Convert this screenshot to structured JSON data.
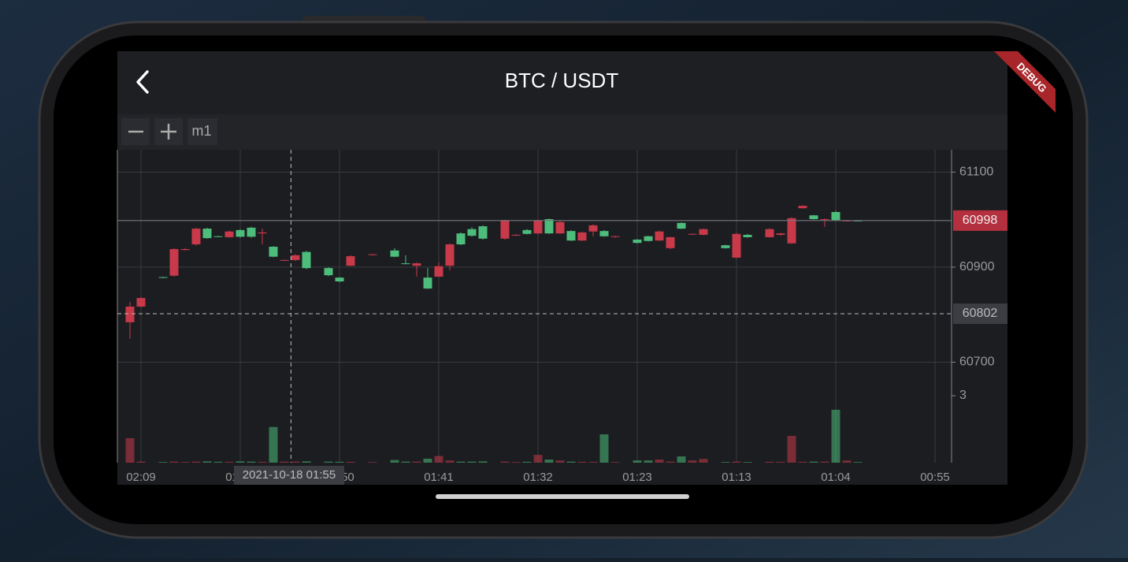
{
  "header": {
    "title": "BTC / USDT",
    "debug_banner": "DEBUG"
  },
  "toolbar": {
    "interval": "m1"
  },
  "chart_data": {
    "type": "candlestick",
    "categories": [
      null,
      "02:09",
      null,
      null,
      null,
      null,
      null,
      null,
      null,
      null,
      "01:59",
      null,
      null,
      null,
      null,
      null,
      null,
      null,
      null,
      "01:50",
      null,
      null,
      null,
      null,
      null,
      null,
      null,
      null,
      "01:41",
      null,
      null,
      null,
      null,
      null,
      null,
      null,
      null,
      "01:32",
      null,
      null,
      null,
      null,
      null,
      null,
      null,
      null,
      "01:23",
      null,
      null,
      null,
      null,
      null,
      null,
      null,
      null,
      "01:13",
      null,
      null,
      null,
      null,
      null,
      null,
      null,
      null,
      "01:04",
      null,
      null,
      null,
      null,
      null,
      null,
      null,
      null,
      "00:55"
    ],
    "open": [
      60817,
      60835,
      null,
      60878,
      60938,
      60938,
      60981,
      60961,
      60964,
      60975,
      60964,
      60964,
      60973,
      60922,
      60915,
      60925,
      60898,
      null,
      60883,
      60870,
      60923,
      null,
      60927,
      null,
      60922,
      60907,
      60908,
      60855,
      60902,
      60948,
      60948,
      60966,
      60960,
      null,
      60999,
      60968,
      60970,
      60998,
      60971,
      60995,
      60956,
      60973,
      60988,
      60965,
      60965,
      null,
      60951,
      60955,
      60975,
      60963,
      60981,
      60970,
      60980,
      null,
      60940,
      60970,
      60963,
      null,
      60980,
      60971,
      61003,
      61029,
      61001,
      61001,
      60999,
      60998,
      60998,
      null,
      null,
      null,
      null,
      null,
      null,
      null
    ],
    "high": [
      60827,
      60837,
      null,
      60880,
      60940,
      60940,
      60983,
      60983,
      60966,
      60977,
      60980,
      60985,
      60981,
      60944,
      60916,
      60927,
      60934,
      null,
      60900,
      60879,
      60925,
      null,
      60928,
      null,
      60940,
      60925,
      60910,
      60898,
      60910,
      60950,
      60973,
      60984,
      60988,
      null,
      61000,
      60970,
      60980,
      61000,
      61002,
      60997,
      60978,
      60975,
      60990,
      60978,
      60966,
      null,
      60959,
      60966,
      60977,
      60964,
      60994,
      60971,
      60981,
      null,
      60947,
      60972,
      60970,
      null,
      60982,
      60972,
      61005,
      61030,
      61010,
      61002,
      61018,
      60999,
      60999,
      null,
      null,
      null,
      null,
      null,
      null,
      null
    ],
    "low": [
      60749,
      60815,
      null,
      60877,
      60880,
      60935,
      60945,
      60960,
      60963,
      60962,
      60962,
      60962,
      60948,
      60921,
      60913,
      60913,
      60896,
      null,
      60881,
      60868,
      60902,
      null,
      60925,
      null,
      60921,
      60906,
      60880,
      60854,
      60879,
      60893,
      60946,
      60964,
      60958,
      null,
      60958,
      60966,
      60969,
      60969,
      60970,
      60970,
      60955,
      60955,
      60965,
      60964,
      60962,
      null,
      60950,
      60954,
      60955,
      60938,
      60980,
      60968,
      60967,
      null,
      60939,
      60919,
      60962,
      null,
      60962,
      60966,
      60949,
      61023,
      61000,
      60985,
      60998,
      60996,
      60997,
      null,
      null,
      null,
      null,
      null,
      null,
      null
    ],
    "close": [
      60784,
      60817,
      null,
      60879,
      60882,
      60936,
      60948,
      60981,
      60965,
      60963,
      60978,
      60983,
      60971,
      60943,
      60914,
      60915,
      60932,
      null,
      60898,
      60878,
      60903,
      null,
      60926,
      null,
      60935,
      60908,
      60903,
      60878,
      60880,
      60903,
      60971,
      60980,
      60986,
      null,
      60960,
      60967,
      60978,
      60971,
      61001,
      60971,
      60976,
      60956,
      60975,
      60976,
      60964,
      null,
      60958,
      60965,
      60956,
      60940,
      60993,
      60969,
      60968,
      null,
      60946,
      60920,
      60968,
      null,
      60963,
      60968,
      60950,
      61024,
      61009,
      61000,
      61016,
      60997,
      60998,
      null,
      null,
      null,
      null,
      null,
      null,
      null
    ],
    "volume": [
      1.1,
      0.05,
      null,
      0.03,
      0.05,
      0.03,
      0.05,
      0.06,
      0.04,
      0.04,
      0.06,
      0.05,
      0.04,
      1.6,
      0.05,
      0.05,
      0.06,
      null,
      0.05,
      0.04,
      0.04,
      null,
      0.03,
      null,
      0.12,
      0.05,
      0.05,
      0.18,
      0.3,
      0.1,
      0.05,
      0.05,
      0.06,
      null,
      0.05,
      0.03,
      0.04,
      0.35,
      0.14,
      0.1,
      0.05,
      0.04,
      0.04,
      1.27,
      0.03,
      null,
      0.1,
      0.1,
      0.14,
      0.05,
      0.28,
      0.1,
      0.17,
      null,
      0.03,
      0.05,
      0.03,
      null,
      0.04,
      0.04,
      1.2,
      0.04,
      0.05,
      0.05,
      2.37,
      0.1,
      0.03,
      null,
      null,
      null,
      null,
      null,
      null,
      null
    ],
    "ylim": [
      60666,
      61147
    ],
    "yticks": [
      61100,
      60900,
      60700
    ],
    "volume_ylim": [
      0,
      3.4
    ],
    "volume_yticks": [
      3
    ],
    "up_color": "#4dbd7c",
    "down_color": "#c8394a",
    "grid": true,
    "last_price": 60998,
    "crosshair": {
      "price": 60802,
      "time": "2021-10-18 01:55"
    }
  }
}
